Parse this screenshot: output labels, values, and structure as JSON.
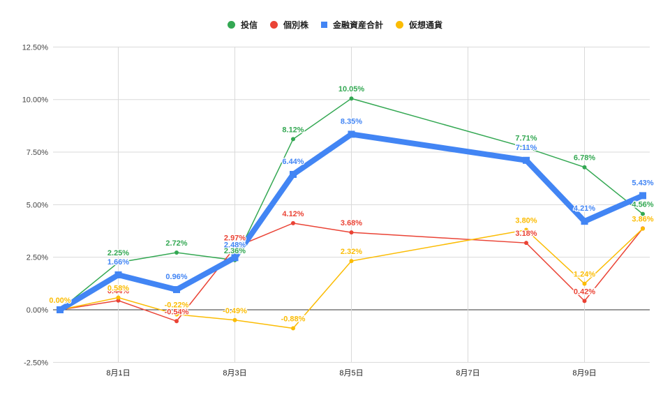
{
  "chart_data": {
    "type": "line",
    "title": "",
    "xlabel": "",
    "ylabel": "",
    "ylim": [
      -0.025,
      0.125
    ],
    "yticks": [
      "-2.50%",
      "0.00%",
      "2.50%",
      "5.00%",
      "7.50%",
      "10.00%",
      "12.50%"
    ],
    "ytick_values": [
      -2.5,
      0,
      2.5,
      5,
      7.5,
      10,
      12.5
    ],
    "xtick_labels": [
      "8月1日",
      "8月3日",
      "8月5日",
      "8月7日",
      "8月9日"
    ],
    "xtick_days": [
      1,
      3,
      5,
      7,
      9
    ],
    "x_days": [
      0,
      1,
      2,
      3,
      4,
      5,
      8,
      9,
      10
    ],
    "x": [
      "7月31日",
      "8月1日",
      "8月2日",
      "8月3日",
      "8月4日",
      "8月5日",
      "8月8日",
      "8月9日",
      "8月10日"
    ],
    "grid": true,
    "legend_position": "top",
    "series": [
      {
        "name": "投信",
        "color": "#34a853",
        "width": 1.5,
        "marker": "circle",
        "values": [
          0.0,
          2.25,
          2.72,
          2.36,
          8.12,
          10.05,
          7.71,
          6.78,
          4.56
        ],
        "labels": [
          "",
          "2.25%",
          "2.72%",
          "2.36%",
          "8.12%",
          "10.05%",
          "7.71%",
          "6.78%",
          "4.56%"
        ]
      },
      {
        "name": "個別株",
        "color": "#ea4335",
        "width": 1.5,
        "marker": "circle",
        "values": [
          0.0,
          0.44,
          -0.54,
          2.97,
          4.12,
          3.68,
          3.18,
          0.42,
          3.87
        ],
        "labels": [
          "",
          "0.44%",
          "-0.54%",
          "2.97%",
          "4.12%",
          "3.68%",
          "3.18%",
          "0.42%",
          ""
        ]
      },
      {
        "name": "金融資産合計",
        "color": "#4285f4",
        "width": 8,
        "marker": "square",
        "values": [
          0.0,
          1.66,
          0.96,
          2.48,
          6.44,
          8.35,
          7.11,
          4.21,
          5.43
        ],
        "labels": [
          "",
          "1.66%",
          "0.96%",
          "2.48%",
          "6.44%",
          "8.35%",
          "7.11%",
          "4.21%",
          "5.43%"
        ]
      },
      {
        "name": "仮想通貨",
        "color": "#fbbc04",
        "width": 1.5,
        "marker": "circle",
        "values": [
          0.0,
          0.58,
          -0.22,
          -0.49,
          -0.88,
          2.32,
          3.8,
          1.24,
          3.86
        ],
        "labels": [
          "0.00%",
          "0.58%",
          "-0.22%",
          "-0.49%",
          "-0.88%",
          "2.32%",
          "3.80%",
          "1.24%",
          "3.86%"
        ]
      }
    ]
  },
  "legend": [
    {
      "label": "投信",
      "color": "#34a853",
      "shape": "circle"
    },
    {
      "label": "個別株",
      "color": "#ea4335",
      "shape": "circle"
    },
    {
      "label": "金融資産合計",
      "color": "#4285f4",
      "shape": "square"
    },
    {
      "label": "仮想通貨",
      "color": "#fbbc04",
      "shape": "circle"
    }
  ]
}
